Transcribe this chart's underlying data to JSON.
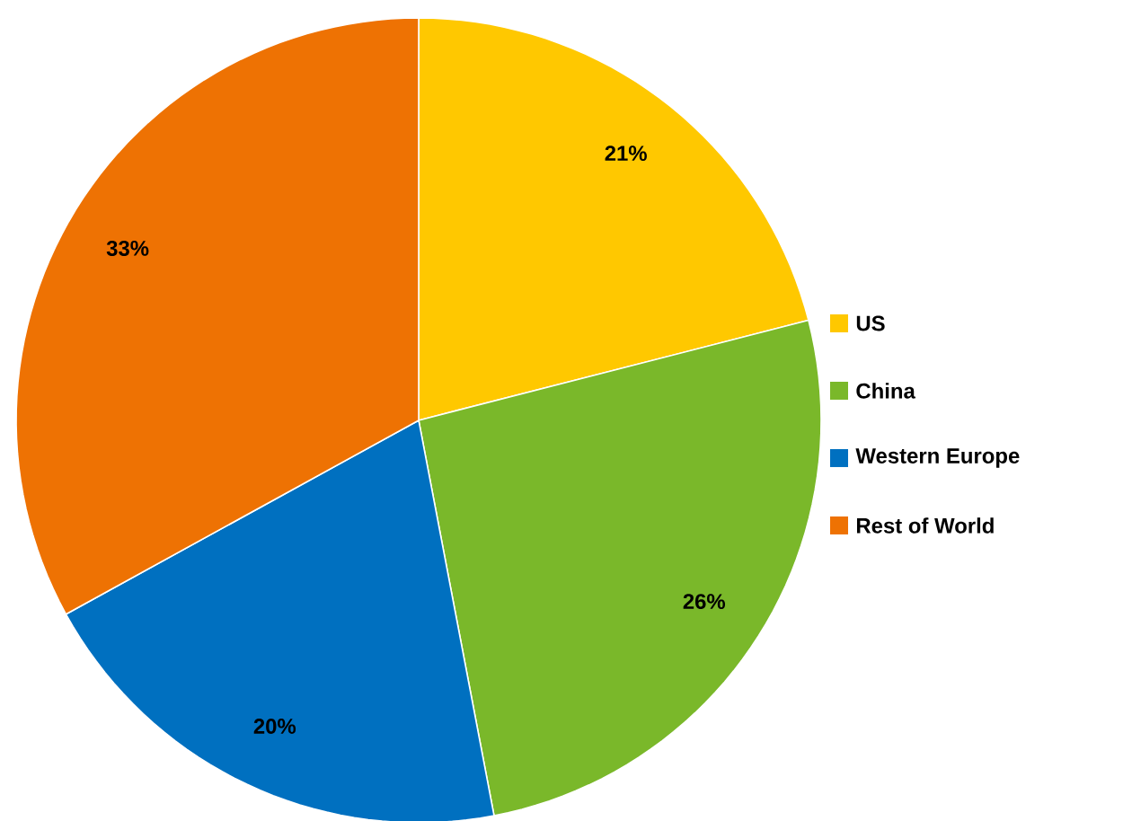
{
  "chart_data": {
    "type": "pie",
    "categories": [
      "US",
      "China",
      "Western Europe",
      "Rest of World"
    ],
    "values": [
      21,
      26,
      20,
      33
    ],
    "colors": [
      "#ffc800",
      "#7ab82a",
      "#0070c0",
      "#ee7203"
    ],
    "value_labels": [
      "21%",
      "26%",
      "20%",
      "33%"
    ],
    "legend": "right"
  }
}
